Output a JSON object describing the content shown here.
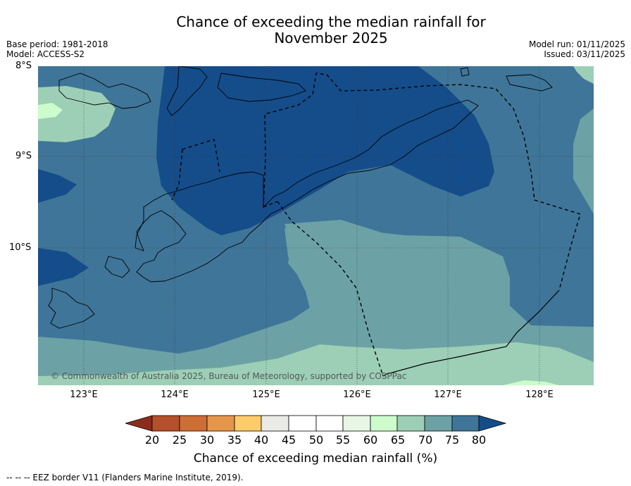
{
  "title": {
    "line1": "Chance of exceeding the median rainfall for",
    "line2": "November 2025"
  },
  "meta": {
    "base_period": "Base period: 1981-2018",
    "model": "Model: ACCESS-S2",
    "model_run": "Model run: 01/11/2025",
    "issued": "Issued: 03/11/2025"
  },
  "map": {
    "lat_labels": [
      "8°S",
      "9°S",
      "10°S"
    ],
    "lon_labels": [
      "123°E",
      "124°E",
      "125°E",
      "126°E",
      "127°E",
      "128°E"
    ],
    "extent": {
      "lon_min": 122.5,
      "lon_max": 128.6,
      "lat_min": -11.5,
      "lat_max": -8.0
    },
    "copyright": "© Commonwealth of Australia 2025, Bureau of Meteorology, supported by COSPPac"
  },
  "colorbar": {
    "ticks": [
      "20",
      "25",
      "30",
      "35",
      "40",
      "45",
      "50",
      "55",
      "60",
      "65",
      "70",
      "75",
      "80"
    ],
    "colors": {
      "lt20": "#8c2c1a",
      "20_25": "#b4502b",
      "25_30": "#cd6e35",
      "30_35": "#e6964a",
      "35_40": "#fdcc6a",
      "40_45": "#eaeae6",
      "45_50": "#ffffff",
      "50_55": "#ffffff",
      "55_60": "#e8f6e6",
      "60_65": "#ccfccc",
      "65_70": "#9dcfb6",
      "70_75": "#6ca2a5",
      "75_80": "#3f7598",
      "gt80": "#154d8a"
    },
    "title": "Chance of exceeding median rainfall (%)"
  },
  "footnote": "--  --  -- EEZ border V11 (Flanders Marine Institute, 2019)."
}
